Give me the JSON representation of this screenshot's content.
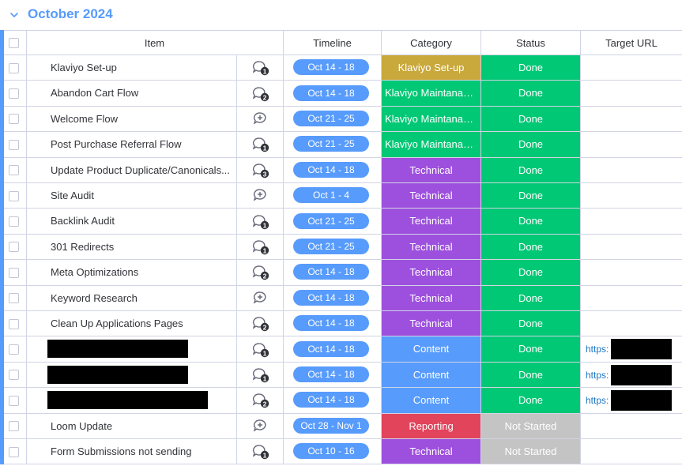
{
  "group": {
    "title": "October 2024"
  },
  "columns": {
    "item": "Item",
    "timeline": "Timeline",
    "category": "Category",
    "status": "Status",
    "target_url": "Target URL"
  },
  "colors": {
    "accent": "#579bfc",
    "klaviyo_setup": "#c9a83c",
    "klaviyo_maint": "#00c875",
    "technical": "#9d50dd",
    "content": "#579bfc",
    "reporting": "#e2445c",
    "done": "#00c875",
    "not_started": "#c4c4c4"
  },
  "rows": [
    {
      "name": "Klaviyo Set-up",
      "updates": "1",
      "timeline": "Oct 14 - 18",
      "category": "Klaviyo Set-up",
      "cat_color": "klaviyo_setup",
      "status": "Done",
      "status_color": "done",
      "url": ""
    },
    {
      "name": "Abandon Cart Flow",
      "updates": "2",
      "timeline": "Oct 14 - 18",
      "category": "Klaviyo Maintanan...",
      "cat_color": "klaviyo_maint",
      "status": "Done",
      "status_color": "done",
      "url": ""
    },
    {
      "name": "Welcome Flow",
      "updates": "",
      "timeline": "Oct 21 - 25",
      "category": "Klaviyo Maintanan...",
      "cat_color": "klaviyo_maint",
      "status": "Done",
      "status_color": "done",
      "url": ""
    },
    {
      "name": "Post Purchase Referral Flow",
      "updates": "1",
      "timeline": "Oct 21 - 25",
      "category": "Klaviyo Maintanan...",
      "cat_color": "klaviyo_maint",
      "status": "Done",
      "status_color": "done",
      "url": ""
    },
    {
      "name": "Update Product Duplicate/Canonicals...",
      "updates": "3",
      "timeline": "Oct 14 - 18",
      "category": "Technical",
      "cat_color": "technical",
      "status": "Done",
      "status_color": "done",
      "url": ""
    },
    {
      "name": "Site Audit",
      "updates": "",
      "timeline": "Oct 1 - 4",
      "category": "Technical",
      "cat_color": "technical",
      "status": "Done",
      "status_color": "done",
      "url": ""
    },
    {
      "name": "Backlink Audit",
      "updates": "1",
      "timeline": "Oct 21 - 25",
      "category": "Technical",
      "cat_color": "technical",
      "status": "Done",
      "status_color": "done",
      "url": ""
    },
    {
      "name": "301 Redirects",
      "updates": "1",
      "timeline": "Oct 21 - 25",
      "category": "Technical",
      "cat_color": "technical",
      "status": "Done",
      "status_color": "done",
      "url": ""
    },
    {
      "name": "Meta Optimizations",
      "updates": "2",
      "timeline": "Oct 14 - 18",
      "category": "Technical",
      "cat_color": "technical",
      "status": "Done",
      "status_color": "done",
      "url": ""
    },
    {
      "name": "Keyword Research",
      "updates": "",
      "timeline": "Oct 14 - 18",
      "category": "Technical",
      "cat_color": "technical",
      "status": "Done",
      "status_color": "done",
      "url": ""
    },
    {
      "name": "Clean Up Applications Pages",
      "updates": "2",
      "timeline": "Oct 14 - 18",
      "category": "Technical",
      "cat_color": "technical",
      "status": "Done",
      "status_color": "done",
      "url": ""
    },
    {
      "name": "",
      "redacted": true,
      "updates": "1",
      "timeline": "Oct 14 - 18",
      "category": "Content",
      "cat_color": "content",
      "status": "Done",
      "status_color": "done",
      "url": "https:"
    },
    {
      "name": "",
      "redacted": true,
      "updates": "1",
      "timeline": "Oct 14 - 18",
      "category": "Content",
      "cat_color": "content",
      "status": "Done",
      "status_color": "done",
      "url": "https:"
    },
    {
      "name": "",
      "redacted": true,
      "updates": "2",
      "timeline": "Oct 14 - 18",
      "category": "Content",
      "cat_color": "content",
      "status": "Done",
      "status_color": "done",
      "url": "https:"
    },
    {
      "name": "Loom Update",
      "updates": "",
      "timeline": "Oct 28 - Nov 1",
      "category": "Reporting",
      "cat_color": "reporting",
      "status": "Not Started",
      "status_color": "not_started",
      "url": ""
    },
    {
      "name": "Form Submissions not sending",
      "updates": "1",
      "timeline": "Oct 10 - 16",
      "category": "Technical",
      "cat_color": "technical",
      "status": "Not Started",
      "status_color": "not_started",
      "url": ""
    }
  ]
}
